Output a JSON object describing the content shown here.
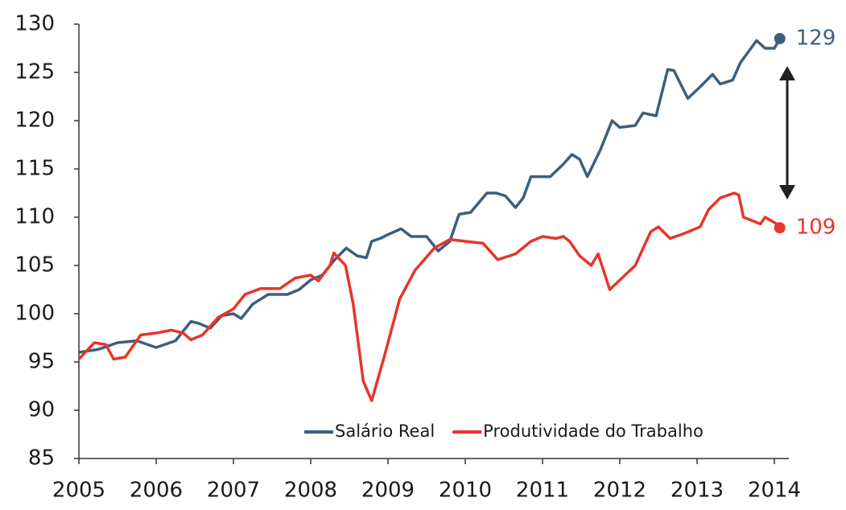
{
  "chart_data": {
    "type": "line",
    "xlim": [
      2005,
      2014.15
    ],
    "xticks": [
      2005,
      2006,
      2007,
      2008,
      2009,
      2010,
      2011,
      2012,
      2013,
      2014
    ],
    "ylim": [
      85,
      130
    ],
    "yticks": [
      85,
      90,
      95,
      100,
      105,
      110,
      115,
      120,
      125,
      130
    ],
    "grid": false,
    "legend": "lower right",
    "series": [
      {
        "name": "Salário Real",
        "color": "#3d5f7f",
        "end_label": "129",
        "x": [
          2005.0,
          2005.25,
          2005.5,
          2005.75,
          2006.0,
          2006.25,
          2006.45,
          2006.55,
          2006.7,
          2006.85,
          2007.0,
          2007.1,
          2007.25,
          2007.45,
          2007.7,
          2007.85,
          2008.0,
          2008.15,
          2008.3,
          2008.46,
          2008.6,
          2008.72,
          2008.79,
          2008.9,
          2009.0,
          2009.17,
          2009.3,
          2009.5,
          2009.65,
          2009.8,
          2009.92,
          2010.07,
          2010.28,
          2010.4,
          2010.52,
          2010.65,
          2010.75,
          2010.85,
          2011.1,
          2011.27,
          2011.38,
          2011.48,
          2011.58,
          2011.75,
          2011.9,
          2012.0,
          2012.2,
          2012.3,
          2012.47,
          2012.62,
          2012.7,
          2012.88,
          2013.04,
          2013.2,
          2013.3,
          2013.46,
          2013.56,
          2013.77,
          2013.88,
          2014.0,
          2014.07
        ],
        "values": [
          96.0,
          96.3,
          97.0,
          97.2,
          96.5,
          97.2,
          99.2,
          99.0,
          98.5,
          99.8,
          100.0,
          99.5,
          101.0,
          102.0,
          102.0,
          102.5,
          103.5,
          104.0,
          105.5,
          106.8,
          106.0,
          105.8,
          107.5,
          107.8,
          108.2,
          108.8,
          108.0,
          108.0,
          106.5,
          107.5,
          110.3,
          110.5,
          112.5,
          112.5,
          112.2,
          111.0,
          112.0,
          114.2,
          114.2,
          115.5,
          116.5,
          116.0,
          114.2,
          117.0,
          120.0,
          119.3,
          119.5,
          120.8,
          120.5,
          125.3,
          125.2,
          122.3,
          123.5,
          124.8,
          123.8,
          124.2,
          126.0,
          128.3,
          127.5,
          127.5,
          128.5
        ]
      },
      {
        "name": "Produtividade do Trabalho",
        "color": "#e8352a",
        "end_label": "109",
        "x": [
          2005.0,
          2005.2,
          2005.35,
          2005.45,
          2005.6,
          2005.8,
          2006.0,
          2006.2,
          2006.35,
          2006.45,
          2006.6,
          2006.8,
          2007.0,
          2007.15,
          2007.35,
          2007.6,
          2007.8,
          2008.0,
          2008.1,
          2008.25,
          2008.3,
          2008.45,
          2008.55,
          2008.68,
          2008.79,
          2008.95,
          2009.15,
          2009.35,
          2009.6,
          2009.8,
          2010.0,
          2010.23,
          2010.42,
          2010.65,
          2010.85,
          2011.0,
          2011.17,
          2011.27,
          2011.35,
          2011.48,
          2011.63,
          2011.72,
          2011.87,
          2012.2,
          2012.4,
          2012.5,
          2012.65,
          2012.83,
          2013.04,
          2013.15,
          2013.3,
          2013.48,
          2013.54,
          2013.6,
          2013.82,
          2013.88,
          2014.03,
          2014.07
        ],
        "values": [
          95.3,
          97.0,
          96.8,
          95.3,
          95.5,
          97.8,
          98.0,
          98.3,
          98.0,
          97.3,
          97.8,
          99.6,
          100.5,
          102.0,
          102.6,
          102.6,
          103.7,
          104.0,
          103.4,
          105.0,
          106.3,
          105.0,
          101.0,
          93.0,
          91.0,
          95.5,
          101.5,
          104.5,
          106.8,
          107.7,
          107.5,
          107.3,
          105.6,
          106.2,
          107.5,
          108.0,
          107.8,
          108.0,
          107.5,
          106.0,
          105.0,
          106.2,
          102.5,
          105.0,
          108.5,
          109.0,
          107.8,
          108.3,
          109.0,
          110.8,
          112.0,
          112.5,
          112.3,
          110.0,
          109.3,
          110.0,
          109.3,
          108.9
        ]
      }
    ]
  }
}
